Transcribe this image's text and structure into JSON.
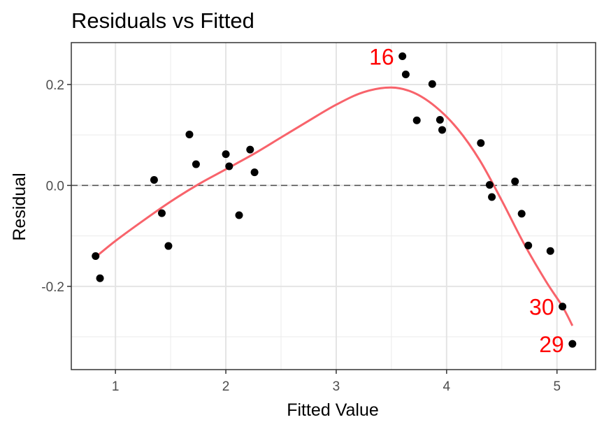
{
  "chart_data": {
    "type": "scatter",
    "title": "Residuals vs Fitted",
    "xlabel": "Fitted Value",
    "ylabel": "Residual",
    "xlim": [
      0.6,
      5.35
    ],
    "ylim": [
      -0.365,
      0.283
    ],
    "x_ticks": [
      1,
      2,
      3,
      4,
      5
    ],
    "y_ticks": [
      -0.2,
      0.0,
      0.2
    ],
    "x_tick_labels": [
      "1",
      "2",
      "3",
      "4",
      "5"
    ],
    "y_tick_labels": [
      "-0.2",
      "0.0",
      "0.2"
    ],
    "grid": true,
    "reference_line": {
      "y": 0,
      "style": "dashed",
      "color": "#4d4d4d"
    },
    "point_color": "#000000",
    "smooth_color": "#f8636b",
    "label_color": "#ff0000",
    "points": [
      {
        "x": 0.82,
        "y": -0.14
      },
      {
        "x": 0.86,
        "y": -0.184
      },
      {
        "x": 1.35,
        "y": 0.011
      },
      {
        "x": 1.42,
        "y": -0.055
      },
      {
        "x": 1.48,
        "y": -0.12
      },
      {
        "x": 1.67,
        "y": 0.101
      },
      {
        "x": 1.73,
        "y": 0.042
      },
      {
        "x": 2.0,
        "y": 0.062
      },
      {
        "x": 2.03,
        "y": 0.038
      },
      {
        "x": 2.12,
        "y": -0.059
      },
      {
        "x": 2.22,
        "y": 0.071
      },
      {
        "x": 2.26,
        "y": 0.026
      },
      {
        "x": 3.6,
        "y": 0.256
      },
      {
        "x": 3.63,
        "y": 0.22
      },
      {
        "x": 3.73,
        "y": 0.129
      },
      {
        "x": 3.87,
        "y": 0.201
      },
      {
        "x": 3.94,
        "y": 0.13
      },
      {
        "x": 3.96,
        "y": 0.11
      },
      {
        "x": 4.31,
        "y": 0.084
      },
      {
        "x": 4.39,
        "y": 0.001
      },
      {
        "x": 4.41,
        "y": -0.023
      },
      {
        "x": 4.62,
        "y": 0.008
      },
      {
        "x": 4.68,
        "y": -0.056
      },
      {
        "x": 4.74,
        "y": -0.119
      },
      {
        "x": 4.94,
        "y": -0.13
      },
      {
        "x": 5.05,
        "y": -0.24
      },
      {
        "x": 5.14,
        "y": -0.314
      }
    ],
    "smooth_line": [
      {
        "x": 0.82,
        "y": -0.142
      },
      {
        "x": 1.0,
        "y": -0.11
      },
      {
        "x": 1.25,
        "y": -0.07
      },
      {
        "x": 1.5,
        "y": -0.032
      },
      {
        "x": 1.75,
        "y": 0.002
      },
      {
        "x": 2.0,
        "y": 0.032
      },
      {
        "x": 2.25,
        "y": 0.062
      },
      {
        "x": 2.5,
        "y": 0.095
      },
      {
        "x": 2.75,
        "y": 0.128
      },
      {
        "x": 3.0,
        "y": 0.16
      },
      {
        "x": 3.25,
        "y": 0.185
      },
      {
        "x": 3.5,
        "y": 0.194
      },
      {
        "x": 3.7,
        "y": 0.184
      },
      {
        "x": 3.9,
        "y": 0.156
      },
      {
        "x": 4.1,
        "y": 0.112
      },
      {
        "x": 4.3,
        "y": 0.05
      },
      {
        "x": 4.5,
        "y": -0.03
      },
      {
        "x": 4.7,
        "y": -0.115
      },
      {
        "x": 4.9,
        "y": -0.19
      },
      {
        "x": 5.05,
        "y": -0.24
      },
      {
        "x": 5.14,
        "y": -0.278
      }
    ],
    "point_labels": [
      {
        "text": "16",
        "x": 3.6,
        "y": 0.256
      },
      {
        "text": "30",
        "x": 5.05,
        "y": -0.24
      },
      {
        "text": "29",
        "x": 5.14,
        "y": -0.314
      }
    ]
  }
}
